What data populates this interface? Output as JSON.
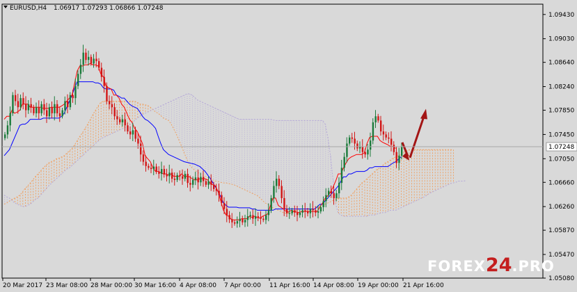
{
  "header": {
    "symbol": "EURUSD,H4",
    "ohlc": "1.06917 1.07293 1.06866 1.07248"
  },
  "watermark": {
    "part1": "FOREX",
    "part2": "24",
    "part3": ".PRO"
  },
  "colors": {
    "background": "#d9d9d9",
    "up_candle": "#1a7a3a",
    "down_candle": "#d21515",
    "tenkan": "#ff0000",
    "kijun": "#0000ff",
    "kumo_up": "#f0a060",
    "kumo_down": "#b4a6d8",
    "arrow": "#a31515"
  },
  "chart_data": {
    "type": "candlestick",
    "symbol": "EURUSD",
    "timeframe": "H4",
    "current_price": "1.07248",
    "ylim": [
      1.0508,
      1.096
    ],
    "y_ticks": [
      "1.09430",
      "1.09030",
      "1.08640",
      "1.08240",
      "1.07850",
      "1.07450",
      "1.07050",
      "1.06660",
      "1.06260",
      "1.05870",
      "1.05470",
      "1.05080"
    ],
    "x_ticks": [
      "20 Mar 2017",
      "23 Mar 08:00",
      "28 Mar 00:00",
      "30 Mar 16:00",
      "4 Apr 08:00",
      "7 Apr 00:00",
      "11 Apr 16:00",
      "14 Apr 08:00",
      "19 Apr 00:00",
      "21 Apr 16:00"
    ],
    "close": [
      1.0745,
      1.076,
      1.078,
      1.081,
      1.08,
      1.079,
      1.0805,
      1.0795,
      1.0785,
      1.0795,
      1.079,
      1.078,
      1.079,
      1.078,
      1.0795,
      1.0785,
      1.0775,
      1.079,
      1.078,
      1.0795,
      1.078,
      1.0775,
      1.0785,
      1.08,
      1.079,
      1.081,
      1.0805,
      1.0825,
      1.0845,
      1.086,
      1.088,
      1.0868,
      1.0873,
      1.0862,
      1.087,
      1.0866,
      1.0855,
      1.084,
      1.0825,
      1.08,
      1.0795,
      1.079,
      1.0775,
      1.077,
      1.0765,
      1.077,
      1.076,
      1.075,
      1.0745,
      1.0752,
      1.0738,
      1.073,
      1.0712,
      1.07,
      1.0693,
      1.069,
      1.0688,
      1.0692,
      1.0684,
      1.068,
      1.0688,
      1.0679,
      1.0676,
      1.0682,
      1.0672,
      1.067,
      1.0678,
      1.0676,
      1.0672,
      1.068,
      1.0665,
      1.0662,
      1.067,
      1.0674,
      1.0666,
      1.0675,
      1.0668,
      1.0662,
      1.0668,
      1.0662,
      1.0655,
      1.0652,
      1.0645,
      1.0632,
      1.0622,
      1.0612,
      1.0605,
      1.06,
      1.0598,
      1.0602,
      1.0606,
      1.06,
      1.0604,
      1.061,
      1.0612,
      1.0606,
      1.061,
      1.0608,
      1.0606,
      1.0604,
      1.0612,
      1.062,
      1.064,
      1.066,
      1.0672,
      1.066,
      1.064,
      1.0622,
      1.0615,
      1.0615,
      1.062,
      1.0616,
      1.0612,
      1.0616,
      1.062,
      1.0618,
      1.0615,
      1.0622,
      1.062,
      1.0616,
      1.0618,
      1.0625,
      1.0635,
      1.0645,
      1.0652,
      1.0648,
      1.064,
      1.0648,
      1.0665,
      1.069,
      1.0708,
      1.073,
      1.074,
      1.0738,
      1.073,
      1.0722,
      1.0725,
      1.0716,
      1.0712,
      1.072,
      1.0735,
      1.0765,
      1.0775,
      1.0768,
      1.075,
      1.0745,
      1.074,
      1.0738,
      1.0728,
      1.0716,
      1.0698,
      1.071,
      1.0725
    ],
    "tenkan_sen": [
      1.077,
      1.0775,
      1.0775,
      1.0785,
      1.078,
      1.0782,
      1.0785,
      1.0795,
      1.0795,
      1.0795,
      1.079,
      1.079,
      1.079,
      1.079,
      1.079,
      1.0788,
      1.0788,
      1.0788,
      1.079,
      1.079,
      1.079,
      1.079,
      1.0792,
      1.0795,
      1.08,
      1.0805,
      1.081,
      1.083,
      1.085,
      1.0858,
      1.0858,
      1.086,
      1.086,
      1.0862,
      1.086,
      1.086,
      1.0858,
      1.0845,
      1.084,
      1.0825,
      1.0822,
      1.082,
      1.081,
      1.081,
      1.0805,
      1.0795,
      1.079,
      1.078,
      1.077,
      1.0765,
      1.0755,
      1.075,
      1.074,
      1.073,
      1.071,
      1.0705,
      1.07,
      1.069,
      1.0684,
      1.0684,
      1.0682,
      1.068,
      1.068,
      1.0678,
      1.068,
      1.0676,
      1.0676,
      1.0676,
      1.068,
      1.0676,
      1.0676,
      1.0675,
      1.0672,
      1.067,
      1.067,
      1.0672,
      1.0672,
      1.0672,
      1.067,
      1.0664,
      1.0662,
      1.066,
      1.065,
      1.0635,
      1.062,
      1.0612,
      1.061,
      1.0605,
      1.0604,
      1.0604,
      1.0604,
      1.0606,
      1.0606,
      1.0606,
      1.061,
      1.0608,
      1.061,
      1.0608,
      1.0607,
      1.061,
      1.0612,
      1.0614,
      1.0628,
      1.064,
      1.064,
      1.0628,
      1.0625,
      1.0622,
      1.0618,
      1.0617,
      1.062,
      1.0618,
      1.0617,
      1.0616,
      1.0618,
      1.0618,
      1.0618,
      1.0618,
      1.0618,
      1.0618,
      1.0618,
      1.0626,
      1.0632,
      1.064,
      1.0644,
      1.065,
      1.0658,
      1.0668,
      1.068,
      1.068,
      1.069,
      1.0698,
      1.0705,
      1.0708,
      1.071,
      1.0712,
      1.0712,
      1.0712,
      1.0715,
      1.073,
      1.074,
      1.0742,
      1.0742,
      1.0742,
      1.0735,
      1.0732,
      1.073,
      1.0728,
      1.0725,
      1.0725,
      1.0722
    ],
    "kijun_sen": [
      1.071,
      1.0715,
      1.072,
      1.073,
      1.074,
      1.075,
      1.076,
      1.0762,
      1.0762,
      1.0765,
      1.077,
      1.077,
      1.077,
      1.077,
      1.077,
      1.0772,
      1.0772,
      1.0772,
      1.0772,
      1.0772,
      1.0772,
      1.0772,
      1.0775,
      1.078,
      1.079,
      1.08,
      1.081,
      1.0822,
      1.0832,
      1.0832,
      1.0832,
      1.0832,
      1.0832,
      1.0832,
      1.0832,
      1.083,
      1.083,
      1.0828,
      1.0822,
      1.082,
      1.082,
      1.082,
      1.0818,
      1.081,
      1.0808,
      1.0805,
      1.0805,
      1.08,
      1.0795,
      1.0792,
      1.079,
      1.0788,
      1.0782,
      1.0775,
      1.077,
      1.0768,
      1.0764,
      1.076,
      1.0755,
      1.0742,
      1.073,
      1.072,
      1.0716,
      1.0712,
      1.071,
      1.0708,
      1.0706,
      1.0704,
      1.0702,
      1.07,
      1.0699,
      1.0698,
      1.0697,
      1.0696,
      1.0694,
      1.0692,
      1.0688,
      1.0684,
      1.0678,
      1.0672,
      1.0665,
      1.0658,
      1.065,
      1.0642,
      1.0632,
      1.0628,
      1.0625,
      1.0625,
      1.0625,
      1.0625,
      1.0624,
      1.0624,
      1.0624,
      1.0624,
      1.0624,
      1.0622,
      1.0622,
      1.062,
      1.062,
      1.062,
      1.062,
      1.062,
      1.062,
      1.062,
      1.0622,
      1.0622,
      1.0622,
      1.0622,
      1.0622,
      1.0622,
      1.0622,
      1.0622,
      1.0622,
      1.0622,
      1.0622,
      1.0622,
      1.0622,
      1.0622,
      1.0622,
      1.0622,
      1.0626,
      1.063,
      1.063,
      1.0636,
      1.064,
      1.0645,
      1.065,
      1.0655,
      1.066,
      1.0668,
      1.0675,
      1.0675,
      1.068,
      1.068,
      1.0682,
      1.0684,
      1.0684,
      1.0684,
      1.0684,
      1.0686,
      1.069,
      1.069,
      1.0692,
      1.0692,
      1.0692,
      1.0692,
      1.0692,
      1.0692,
      1.0695,
      1.0698,
      1.07,
      1.0704,
      1.0708
    ],
    "kumo_shift": 26,
    "senkou_span_a": [
      1.063,
      1.0632,
      1.0635,
      1.0638,
      1.064,
      1.0642,
      1.0645,
      1.065,
      1.0656,
      1.066,
      1.0665,
      1.067,
      1.0676,
      1.068,
      1.0685,
      1.069,
      1.0694,
      1.0698,
      1.07,
      1.0702,
      1.0705,
      1.0706,
      1.0708,
      1.071,
      1.0714,
      1.0718,
      1.0722,
      1.0728,
      1.0735,
      1.0742,
      1.0748,
      1.0755,
      1.0762,
      1.077,
      1.0778,
      1.0785,
      1.0792,
      1.0798,
      1.08,
      1.08,
      1.08,
      1.08,
      1.08,
      1.08,
      1.08,
      1.08,
      1.08,
      1.08,
      1.08,
      1.08,
      1.08,
      1.0798,
      1.0795,
      1.0795,
      1.0794,
      1.0793,
      1.079,
      1.0786,
      1.0782,
      1.078,
      1.0776,
      1.0772,
      1.077,
      1.0768,
      1.0762,
      1.0754,
      1.0745,
      1.0735,
      1.0725,
      1.0714,
      1.0704,
      1.0695,
      1.069,
      1.0686,
      1.0683,
      1.068,
      1.0678,
      1.0676,
      1.0674,
      1.0672,
      1.067,
      1.0668,
      1.0667,
      1.0666,
      1.0665,
      1.0665,
      1.0664,
      1.0663,
      1.0662,
      1.066,
      1.0658,
      1.0656,
      1.0654,
      1.0652,
      1.065,
      1.0648,
      1.0646,
      1.0644,
      1.064,
      1.0636,
      1.0632,
      1.063,
      1.0627,
      1.0624,
      1.0622,
      1.062,
      1.0618,
      1.0616,
      1.0615,
      1.0615,
      1.0616,
      1.0618,
      1.062,
      1.0622,
      1.0622,
      1.0622,
      1.0622,
      1.0622,
      1.0622,
      1.0622,
      1.0624,
      1.0626,
      1.0628,
      1.063,
      1.0632,
      1.0634,
      1.0636,
      1.0638,
      1.064,
      1.064,
      1.064,
      1.064,
      1.0642,
      1.0645,
      1.065,
      1.0655,
      1.066,
      1.0665,
      1.0668,
      1.0672,
      1.0676,
      1.068,
      1.0684,
      1.0688,
      1.069,
      1.0694,
      1.0698,
      1.07,
      1.0703,
      1.0706,
      1.0708,
      1.071,
      1.0712,
      1.0716,
      1.0718,
      1.072,
      1.072,
      1.072,
      1.072,
      1.072,
      1.072,
      1.072,
      1.072,
      1.072,
      1.072,
      1.072,
      1.072,
      1.072,
      1.072,
      1.072,
      1.072,
      1.072,
      1.072
    ],
    "senkou_span_b": [
      1.0645,
      1.0642,
      1.064,
      1.0636,
      1.0632,
      1.063,
      1.0628,
      1.0626,
      1.0626,
      1.0628,
      1.063,
      1.0634,
      1.0638,
      1.064,
      1.0645,
      1.065,
      1.0655,
      1.066,
      1.0664,
      1.0668,
      1.0672,
      1.0676,
      1.068,
      1.0684,
      1.0688,
      1.069,
      1.0694,
      1.0698,
      1.0702,
      1.0706,
      1.071,
      1.0714,
      1.0718,
      1.0722,
      1.0726,
      1.073,
      1.0734,
      1.0738,
      1.074,
      1.0742,
      1.0744,
      1.0746,
      1.0748,
      1.075,
      1.0752,
      1.0754,
      1.0756,
      1.0758,
      1.076,
      1.0764,
      1.0768,
      1.0772,
      1.0775,
      1.0778,
      1.078,
      1.0782,
      1.0784,
      1.0786,
      1.0788,
      1.079,
      1.0792,
      1.0794,
      1.0796,
      1.0798,
      1.08,
      1.0802,
      1.0804,
      1.0806,
      1.0808,
      1.081,
      1.0812,
      1.0812,
      1.081,
      1.0806,
      1.0802,
      1.08,
      1.0798,
      1.0796,
      1.0794,
      1.0792,
      1.079,
      1.0788,
      1.0786,
      1.0784,
      1.0782,
      1.078,
      1.0778,
      1.0776,
      1.0774,
      1.0772,
      1.077,
      1.077,
      1.077,
      1.077,
      1.077,
      1.077,
      1.077,
      1.077,
      1.077,
      1.077,
      1.077,
      1.077,
      1.077,
      1.0769,
      1.0768,
      1.0768,
      1.0768,
      1.0768,
      1.0768,
      1.0768,
      1.0768,
      1.0768,
      1.0768,
      1.0768,
      1.0768,
      1.0768,
      1.0768,
      1.0768,
      1.0768,
      1.0768,
      1.0768,
      1.0768,
      1.0768,
      1.0762,
      1.074,
      1.071,
      1.067,
      1.063,
      1.0615,
      1.0612,
      1.061,
      1.061,
      1.061,
      1.061,
      1.061,
      1.061,
      1.061,
      1.061,
      1.061,
      1.061,
      1.0612,
      1.0612,
      1.0612,
      1.0614,
      1.0615,
      1.0616,
      1.0616,
      1.0618,
      1.062,
      1.062,
      1.062,
      1.0622,
      1.0624,
      1.0626,
      1.0628,
      1.063,
      1.0632,
      1.0634,
      1.0636,
      1.0638,
      1.064,
      1.0642,
      1.0645,
      1.0648,
      1.065,
      1.0652,
      1.0654,
      1.0656,
      1.0658,
      1.066,
      1.0662,
      1.0664,
      1.0665,
      1.0666,
      1.0668,
      1.0668,
      1.0668,
      1.0669
    ],
    "annotation": "arrows indicating expected pullback then rise"
  }
}
